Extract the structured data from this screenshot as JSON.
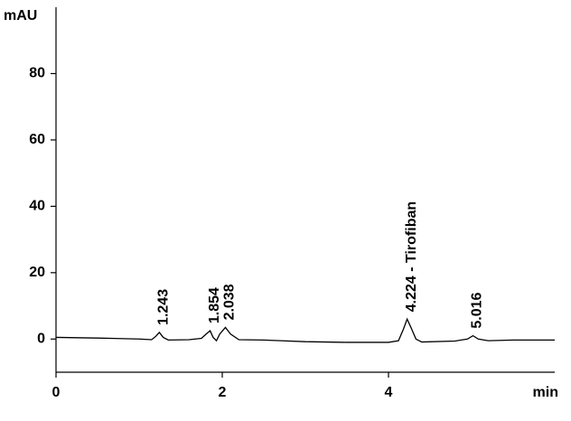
{
  "chart_data": {
    "type": "line",
    "y_axis_label": "mAU",
    "x_axis_label": "min",
    "x": [
      0,
      0.5,
      1.0,
      1.15,
      1.2,
      1.243,
      1.29,
      1.35,
      1.6,
      1.75,
      1.82,
      1.854,
      1.89,
      1.93,
      1.97,
      2.038,
      2.1,
      2.2,
      2.5,
      2.7,
      3.0,
      3.5,
      4.0,
      4.12,
      4.18,
      4.224,
      4.27,
      4.33,
      4.4,
      4.8,
      4.95,
      5.016,
      5.08,
      5.2,
      5.5,
      6.0
    ],
    "values": [
      0.5,
      0.3,
      0,
      -0.2,
      0.8,
      2,
      0.5,
      -0.3,
      -0.2,
      0.2,
      1.8,
      2.5,
      0.5,
      -0.5,
      1.5,
      3.5,
      1.5,
      -0.2,
      -0.3,
      -0.5,
      -0.8,
      -1,
      -1,
      -0.5,
      3,
      6,
      3.5,
      0,
      -0.9,
      -0.6,
      0,
      1,
      0,
      -0.5,
      -0.3,
      -0.3
    ],
    "color": "#000000",
    "peaks": [
      {
        "label": "1.243",
        "x": 1.243,
        "y": 2
      },
      {
        "label": "1.854",
        "x": 1.854,
        "y": 2.5
      },
      {
        "label": "2.038",
        "x": 2.038,
        "y": 3.5
      },
      {
        "label": "4.224 - Tirofiban",
        "x": 4.224,
        "y": 6
      },
      {
        "label": "5.016",
        "x": 5.016,
        "y": 1
      }
    ],
    "xlim": [
      0,
      6
    ],
    "xticks": [
      0,
      2,
      4
    ],
    "ylim": [
      -10,
      100
    ],
    "yticks": [
      0,
      20,
      40,
      60,
      80
    ]
  }
}
